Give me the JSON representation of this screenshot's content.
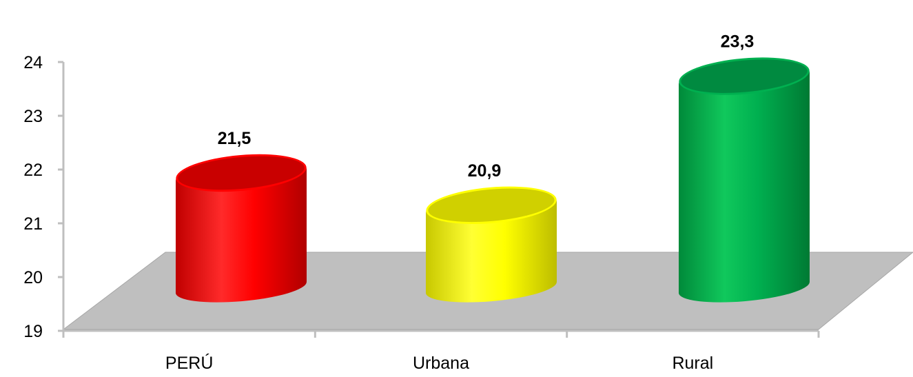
{
  "chart_data": {
    "type": "bar",
    "style": "3d-cylinder",
    "title": "",
    "xlabel": "",
    "ylabel": "",
    "ylim": [
      19,
      24
    ],
    "yticks": [
      19,
      20,
      21,
      22,
      23,
      24
    ],
    "categories": [
      "PERÚ",
      "Urbana",
      "Rural"
    ],
    "values": [
      21.5,
      20.9,
      23.3
    ],
    "data_labels": [
      "21,5",
      "20,9",
      "23,3"
    ],
    "colors": [
      "#ff0000",
      "#ffff00",
      "#00b050"
    ],
    "grid": false,
    "legend": "none"
  }
}
